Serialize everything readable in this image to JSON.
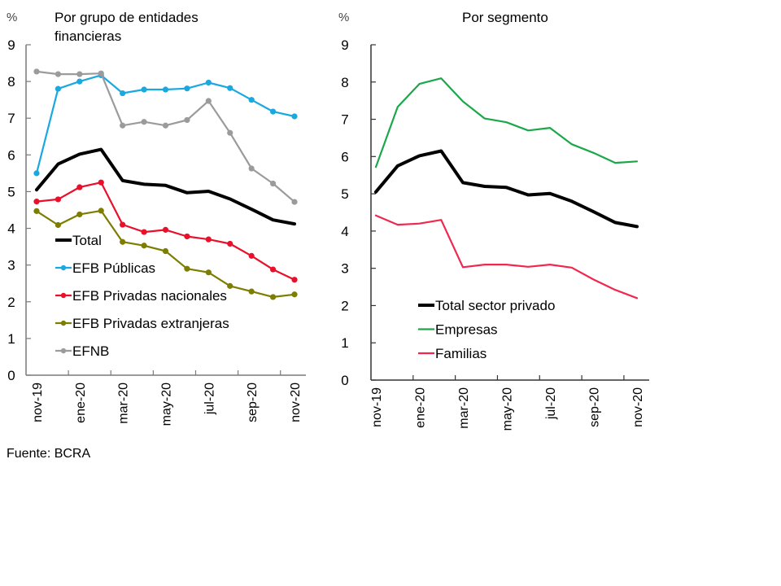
{
  "source": "Fuente: BCRA",
  "chart_data": [
    {
      "type": "line",
      "title": "Por grupo de entidades financieras",
      "title_lines": [
        "Por grupo de entidades",
        "financieras"
      ],
      "ylabel": "%",
      "xlabel": "",
      "ylim": [
        0,
        9
      ],
      "yticks": [
        0,
        1,
        2,
        3,
        4,
        5,
        6,
        7,
        8,
        9
      ],
      "x": [
        "nov-19",
        "dic-19",
        "ene-20",
        "feb-20",
        "mar-20",
        "abr-20",
        "may-20",
        "jun-20",
        "jul-20",
        "ago-20",
        "sep-20",
        "oct-20",
        "nov-20"
      ],
      "xtick_labels": [
        "nov-19",
        "ene-20",
        "mar-20",
        "may-20",
        "jul-20",
        "sep-20",
        "nov-20"
      ],
      "grid": false,
      "legend_position": "bottom-left",
      "series": [
        {
          "name": "Total",
          "color": "#000000",
          "markers": false,
          "values": [
            5.05,
            5.75,
            6.02,
            6.15,
            5.3,
            5.2,
            5.17,
            4.97,
            5.01,
            4.8,
            4.52,
            4.23,
            4.12
          ]
        },
        {
          "name": "EFB Públicas",
          "color": "#1aa8e0",
          "markers": true,
          "values": [
            5.5,
            7.8,
            8.0,
            8.17,
            7.68,
            7.78,
            7.78,
            7.81,
            7.97,
            7.82,
            7.5,
            7.18,
            7.05
          ]
        },
        {
          "name": "EFB Privadas nacionales",
          "color": "#e8102a",
          "markers": true,
          "values": [
            4.73,
            4.79,
            5.12,
            5.25,
            4.1,
            3.9,
            3.96,
            3.78,
            3.7,
            3.58,
            3.25,
            2.88,
            2.6
          ]
        },
        {
          "name": "EFB Privadas extranjeras",
          "color": "#7d7d00",
          "markers": true,
          "values": [
            4.47,
            4.09,
            4.38,
            4.48,
            3.63,
            3.53,
            3.38,
            2.9,
            2.8,
            2.43,
            2.28,
            2.13,
            2.2
          ]
        },
        {
          "name": "EFNB",
          "color": "#9b9b9b",
          "markers": true,
          "values": [
            8.27,
            8.2,
            8.2,
            8.22,
            6.8,
            6.9,
            6.8,
            6.95,
            7.47,
            6.6,
            5.63,
            5.22,
            4.72
          ]
        }
      ]
    },
    {
      "type": "line",
      "title": "Por segmento",
      "title_lines": [
        "Por segmento"
      ],
      "ylabel": "%",
      "xlabel": "",
      "ylim": [
        0,
        9
      ],
      "yticks": [
        0,
        1,
        2,
        3,
        4,
        5,
        6,
        7,
        8,
        9
      ],
      "x": [
        "nov-19",
        "dic-19",
        "ene-20",
        "feb-20",
        "mar-20",
        "abr-20",
        "may-20",
        "jun-20",
        "jul-20",
        "ago-20",
        "sep-20",
        "oct-20",
        "nov-20"
      ],
      "xtick_labels": [
        "nov-19",
        "ene-20",
        "mar-20",
        "may-20",
        "jul-20",
        "sep-20",
        "nov-20"
      ],
      "grid": false,
      "legend_position": "bottom-left",
      "series": [
        {
          "name": "Total sector privado",
          "color": "#000000",
          "markers": false,
          "values": [
            5.05,
            5.75,
            6.02,
            6.15,
            5.3,
            5.2,
            5.17,
            4.97,
            5.01,
            4.8,
            4.52,
            4.23,
            4.12
          ]
        },
        {
          "name": "Empresas",
          "color": "#1ba74a",
          "markers": false,
          "values": [
            5.72,
            7.33,
            7.95,
            8.1,
            7.48,
            7.02,
            6.92,
            6.7,
            6.77,
            6.33,
            6.1,
            5.83,
            5.87
          ]
        },
        {
          "name": "Familias",
          "color": "#f0284f",
          "markers": false,
          "values": [
            4.42,
            4.17,
            4.2,
            4.3,
            3.03,
            3.1,
            3.1,
            3.04,
            3.1,
            3.02,
            2.7,
            2.42,
            2.2
          ]
        }
      ]
    }
  ]
}
